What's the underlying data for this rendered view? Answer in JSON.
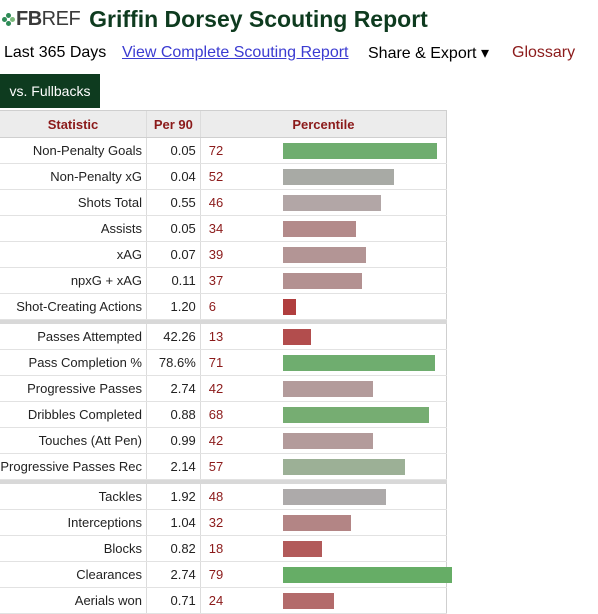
{
  "header": {
    "logo_fb": "FB",
    "logo_ref": "REF",
    "title": "Griffin Dorsey Scouting Report"
  },
  "subnav": {
    "period": "Last 365 Days",
    "complete_link": "View Complete Scouting Report",
    "share": "Share & Export ▾",
    "glossary": "Glossary"
  },
  "tab": {
    "label": "vs. Fullbacks"
  },
  "table": {
    "columns": [
      "Statistic",
      "Per 90",
      "Percentile"
    ],
    "colors": {
      "high": "#6fad6f",
      "mid_high": "#a4b59e",
      "mid": "#b2a3a3",
      "low": "#b88080",
      "very_low": "#b34747"
    },
    "groups": [
      [
        {
          "stat": "Non-Penalty Goals",
          "per90": "0.05",
          "pct": "72",
          "color": "#6fad6f"
        },
        {
          "stat": "Non-Penalty xG",
          "per90": "0.04",
          "pct": "52",
          "color": "#a8aaa5"
        },
        {
          "stat": "Shots Total",
          "per90": "0.55",
          "pct": "46",
          "color": "#b2a6a6"
        },
        {
          "stat": "Assists",
          "per90": "0.05",
          "pct": "34",
          "color": "#b38a8a"
        },
        {
          "stat": "xAG",
          "per90": "0.07",
          "pct": "39",
          "color": "#b39595"
        },
        {
          "stat": "npxG + xAG",
          "per90": "0.11",
          "pct": "37",
          "color": "#b39191"
        },
        {
          "stat": "Shot-Creating Actions",
          "per90": "1.20",
          "pct": "6",
          "color": "#b03e3e"
        }
      ],
      [
        {
          "stat": "Passes Attempted",
          "per90": "42.26",
          "pct": "13",
          "color": "#b24d4d"
        },
        {
          "stat": "Pass Completion %",
          "per90": "78.6%",
          "pct": "71",
          "color": "#6fad6f"
        },
        {
          "stat": "Progressive Passes",
          "per90": "2.74",
          "pct": "42",
          "color": "#b39b9b"
        },
        {
          "stat": "Dribbles Completed",
          "per90": "0.88",
          "pct": "68",
          "color": "#76ad72"
        },
        {
          "stat": "Touches (Att Pen)",
          "per90": "0.99",
          "pct": "42",
          "color": "#b39b9b"
        },
        {
          "stat": "Progressive Passes Rec",
          "per90": "2.14",
          "pct": "57",
          "color": "#9cb096"
        }
      ],
      [
        {
          "stat": "Tackles",
          "per90": "1.92",
          "pct": "48",
          "color": "#adaaaa"
        },
        {
          "stat": "Interceptions",
          "per90": "1.04",
          "pct": "32",
          "color": "#b38585"
        },
        {
          "stat": "Blocks",
          "per90": "0.82",
          "pct": "18",
          "color": "#b25a5a"
        },
        {
          "stat": "Clearances",
          "per90": "2.74",
          "pct": "79",
          "color": "#66ad66"
        },
        {
          "stat": "Aerials won",
          "per90": "0.71",
          "pct": "24",
          "color": "#b36b6b"
        }
      ]
    ]
  }
}
